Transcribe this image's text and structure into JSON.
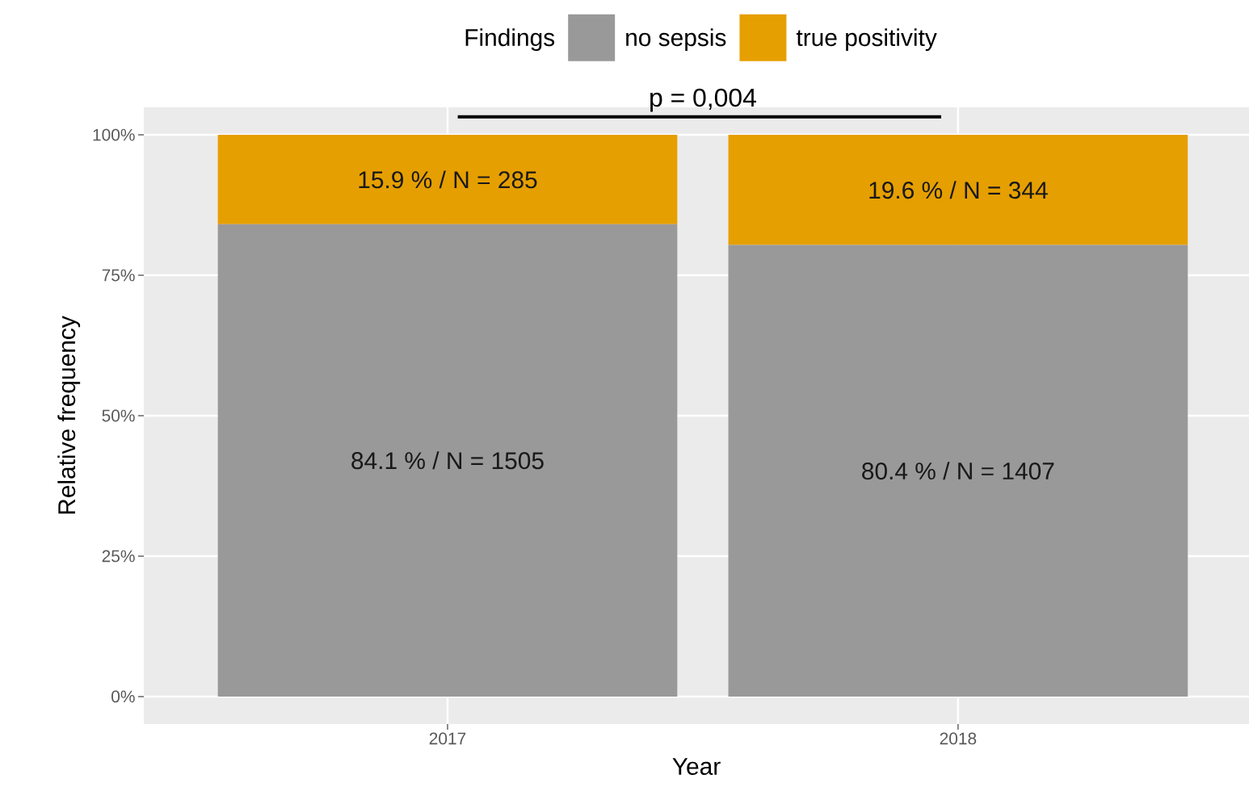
{
  "chart_data": {
    "type": "bar",
    "stacked": true,
    "categories": [
      "2017",
      "2018"
    ],
    "series": [
      {
        "name": "no sepsis",
        "color": "#999999",
        "values": [
          84.1,
          80.4
        ],
        "value_labels": [
          "84.1 % / N = 1505",
          "80.4 % / N = 1407"
        ]
      },
      {
        "name": "true positivity",
        "color": "#e69f00",
        "values": [
          15.9,
          19.6
        ],
        "value_labels": [
          "15.9 % / N = 285",
          "19.6 % / N = 344"
        ]
      }
    ],
    "ylim": [
      -4.9,
      104.9
    ],
    "yticks": [
      {
        "value": 0,
        "label": "0%"
      },
      {
        "value": 25,
        "label": "25%"
      },
      {
        "value": 50,
        "label": "50%"
      },
      {
        "value": 75,
        "label": "75%"
      },
      {
        "value": 100,
        "label": "100%"
      }
    ],
    "grid": true,
    "legend": "top",
    "legend_title": "Findings",
    "xlabel": "Year",
    "ylabel": "Relative frequency",
    "annotations": [
      "p = 0,004"
    ]
  }
}
